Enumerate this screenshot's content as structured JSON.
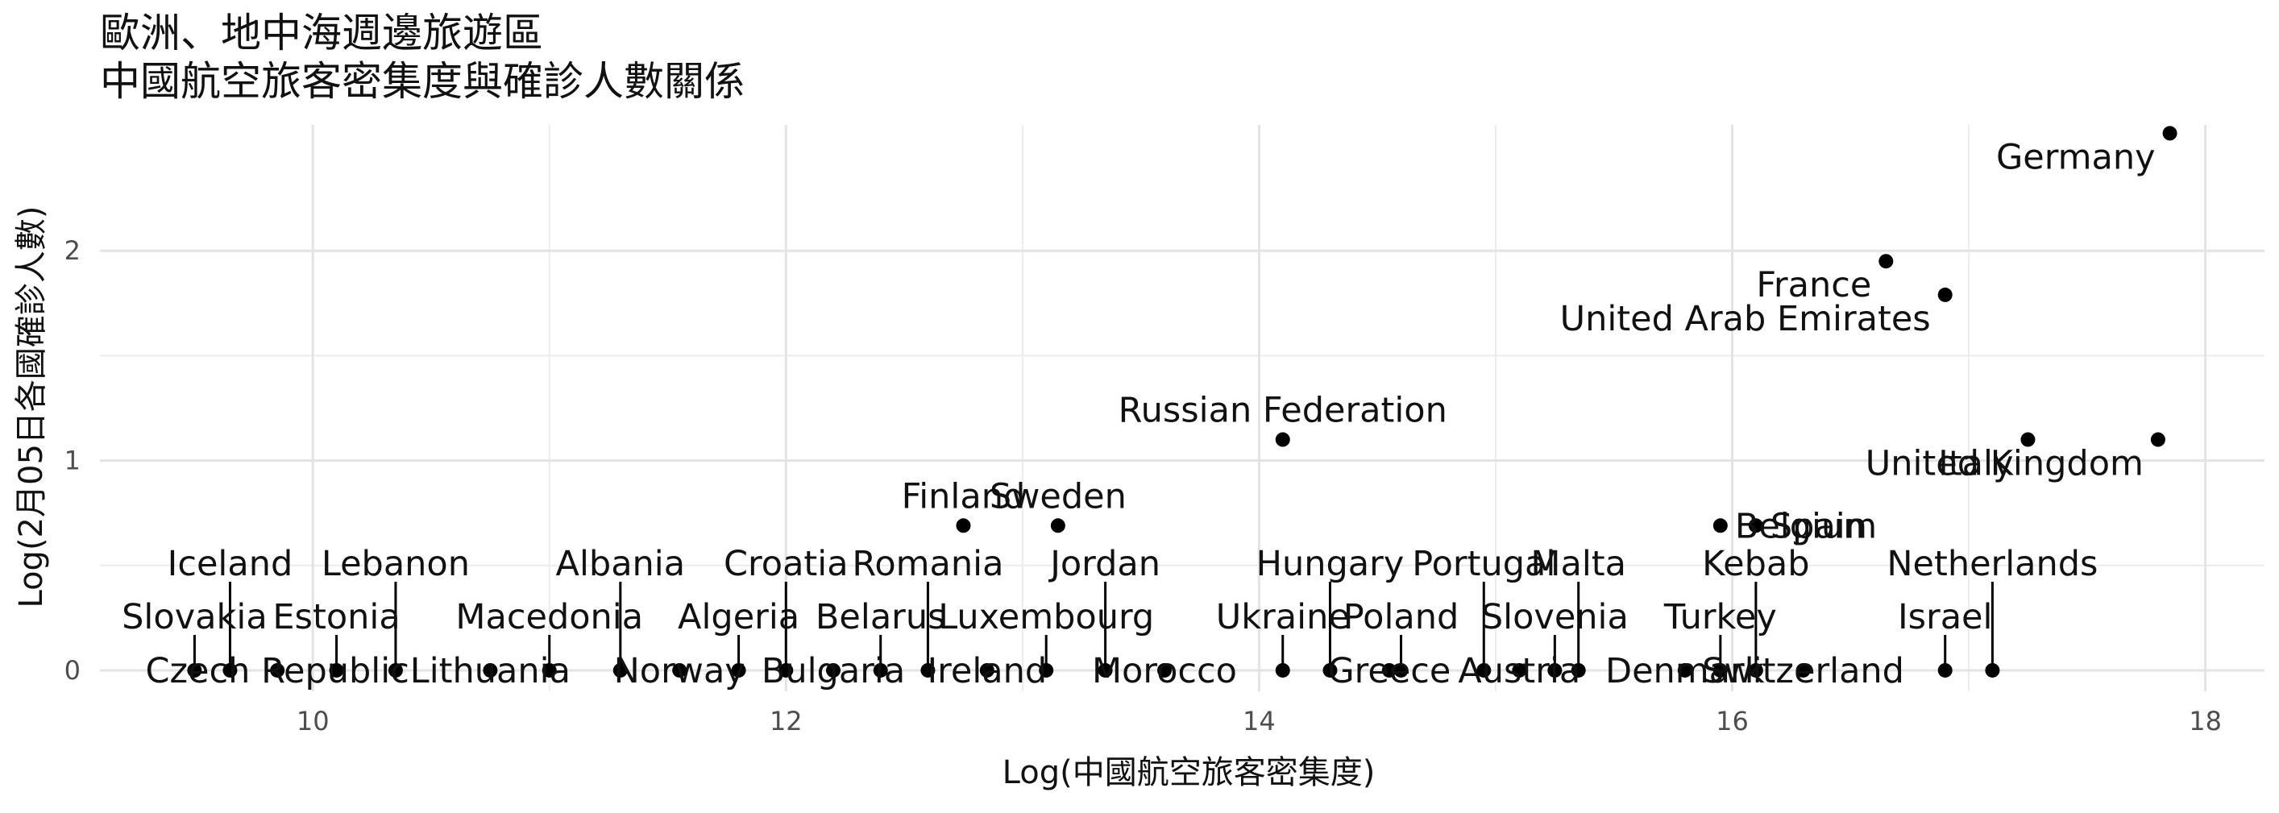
{
  "chart_data": {
    "type": "scatter",
    "title_lines": [
      "歐洲、地中海週邊旅遊區",
      "中國航空旅客密集度與確診人數關係"
    ],
    "xlabel": "Log(中國航空旅客密集度)",
    "ylabel": "Log(2月05日各國確診人數)",
    "xlim": [
      9.1,
      18.25
    ],
    "ylim": [
      -0.1,
      2.6
    ],
    "x_ticks": [
      10,
      12,
      14,
      16,
      18
    ],
    "y_ticks": [
      0,
      1,
      2
    ],
    "grid": true,
    "points": [
      {
        "label": "Germany",
        "x": 17.85,
        "y": 2.56
      },
      {
        "label": "France",
        "x": 16.65,
        "y": 1.95
      },
      {
        "label": "United Arab Emirates",
        "x": 16.9,
        "y": 1.79
      },
      {
        "label": "Italy",
        "x": 17.25,
        "y": 1.1
      },
      {
        "label": "United Kingdom",
        "x": 17.8,
        "y": 1.1
      },
      {
        "label": "Russian Federation",
        "x": 14.1,
        "y": 1.1
      },
      {
        "label": "Finland",
        "x": 12.75,
        "y": 0.69
      },
      {
        "label": "Sweden",
        "x": 13.15,
        "y": 0.69
      },
      {
        "label": "Belgium",
        "x": 15.95,
        "y": 0.69
      },
      {
        "label": "Spain",
        "x": 16.1,
        "y": 0.69
      },
      {
        "label": "Slovakia",
        "x": 9.5,
        "y": 0
      },
      {
        "label": "Iceland",
        "x": 9.65,
        "y": 0
      },
      {
        "label": "Czech Republic",
        "x": 9.85,
        "y": 0
      },
      {
        "label": "Estonia",
        "x": 10.1,
        "y": 0
      },
      {
        "label": "Lebanon",
        "x": 10.35,
        "y": 0
      },
      {
        "label": "Lithuania",
        "x": 10.75,
        "y": 0
      },
      {
        "label": "Macedonia",
        "x": 11.0,
        "y": 0
      },
      {
        "label": "Albania",
        "x": 11.3,
        "y": 0
      },
      {
        "label": "Norway",
        "x": 11.55,
        "y": 0
      },
      {
        "label": "Algeria",
        "x": 11.8,
        "y": 0
      },
      {
        "label": "Croatia",
        "x": 12.0,
        "y": 0
      },
      {
        "label": "Bulgaria",
        "x": 12.2,
        "y": 0
      },
      {
        "label": "Belarus",
        "x": 12.4,
        "y": 0
      },
      {
        "label": "Romania",
        "x": 12.6,
        "y": 0
      },
      {
        "label": "Ireland",
        "x": 12.85,
        "y": 0
      },
      {
        "label": "Luxembourg",
        "x": 13.1,
        "y": 0
      },
      {
        "label": "Jordan",
        "x": 13.35,
        "y": 0
      },
      {
        "label": "Morocco",
        "x": 13.6,
        "y": 0
      },
      {
        "label": "Ukraine",
        "x": 14.1,
        "y": 0
      },
      {
        "label": "Hungary",
        "x": 14.3,
        "y": 0
      },
      {
        "label": "Greece",
        "x": 14.55,
        "y": 0
      },
      {
        "label": "Poland",
        "x": 14.6,
        "y": 0
      },
      {
        "label": "Portugal",
        "x": 14.95,
        "y": 0
      },
      {
        "label": "Austria",
        "x": 15.1,
        "y": 0
      },
      {
        "label": "Slovenia",
        "x": 15.25,
        "y": 0
      },
      {
        "label": "Malta",
        "x": 15.35,
        "y": 0
      },
      {
        "label": "Denmark",
        "x": 15.8,
        "y": 0
      },
      {
        "label": "Turkey",
        "x": 15.95,
        "y": 0
      },
      {
        "label": "Kebab",
        "x": 16.1,
        "y": 0
      },
      {
        "label": "Switzerland",
        "x": 16.3,
        "y": 0
      },
      {
        "label": "Israel",
        "x": 16.9,
        "y": 0
      },
      {
        "label": "Netherlands",
        "x": 17.1,
        "y": 0
      }
    ]
  }
}
